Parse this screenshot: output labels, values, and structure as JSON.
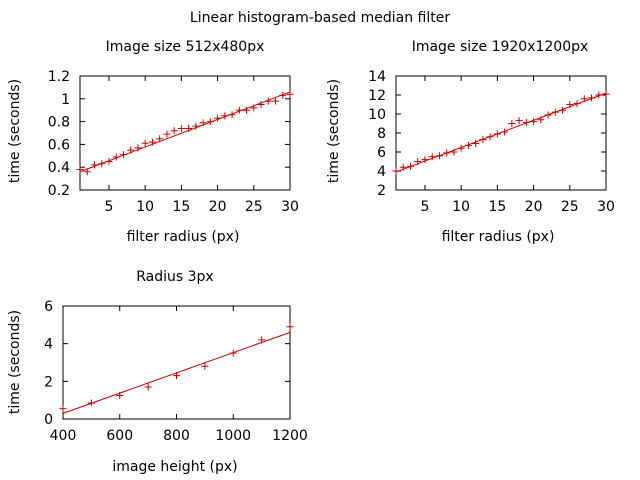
{
  "title": "Linear histogram-based median filter",
  "colors": {
    "series": "#cc0000",
    "axis": "#000000"
  },
  "chart_data": [
    {
      "type": "scatter",
      "title": "Image size 512x480px",
      "xlabel": "filter radius (px)",
      "ylabel": "time (seconds)",
      "xlim": [
        1,
        30
      ],
      "ylim": [
        0.2,
        1.2
      ],
      "xticks": [
        5,
        10,
        15,
        20,
        25,
        30
      ],
      "yticks": [
        0.2,
        0.4,
        0.6,
        0.8,
        1,
        1.2
      ],
      "ytick_labels": [
        "0.2",
        "0.4",
        "0.6",
        "0.8",
        "1",
        "1.2"
      ],
      "grid": false,
      "series": [
        {
          "x": [
            1,
            2,
            3,
            4,
            5,
            6,
            7,
            8,
            9,
            10,
            11,
            12,
            13,
            14,
            15,
            16,
            17,
            18,
            19,
            20,
            21,
            22,
            23,
            24,
            25,
            26,
            27,
            28,
            29,
            30
          ],
          "y": [
            0.38,
            0.36,
            0.42,
            0.43,
            0.45,
            0.49,
            0.51,
            0.55,
            0.57,
            0.61,
            0.62,
            0.65,
            0.69,
            0.72,
            0.74,
            0.74,
            0.76,
            0.79,
            0.8,
            0.83,
            0.85,
            0.86,
            0.9,
            0.9,
            0.92,
            0.95,
            0.98,
            0.98,
            1.03,
            1.04
          ]
        }
      ],
      "fit": {
        "x": [
          1,
          30
        ],
        "y": [
          0.36,
          1.06
        ]
      }
    },
    {
      "type": "scatter",
      "title": "Image size 1920x1200px",
      "xlabel": "filter radius (px)",
      "ylabel": "time (seconds)",
      "xlim": [
        1,
        30
      ],
      "ylim": [
        2,
        14
      ],
      "xticks": [
        5,
        10,
        15,
        20,
        25,
        30
      ],
      "yticks": [
        2,
        4,
        6,
        8,
        10,
        12,
        14
      ],
      "ytick_labels": [
        "2",
        "4",
        "6",
        "8",
        "10",
        "12",
        "14"
      ],
      "grid": false,
      "series": [
        {
          "x": [
            1,
            2,
            3,
            4,
            5,
            6,
            7,
            8,
            9,
            10,
            11,
            12,
            13,
            14,
            15,
            16,
            17,
            18,
            19,
            20,
            21,
            22,
            23,
            24,
            25,
            26,
            27,
            28,
            29,
            30
          ],
          "y": [
            4.0,
            4.4,
            4.5,
            5.0,
            5.2,
            5.5,
            5.6,
            5.9,
            6.0,
            6.4,
            6.7,
            6.9,
            7.3,
            7.6,
            7.9,
            8.1,
            9.0,
            9.3,
            9.1,
            9.2,
            9.4,
            9.9,
            10.2,
            10.4,
            11.0,
            11.1,
            11.6,
            11.7,
            12.0,
            12.1
          ]
        }
      ],
      "fit": {
        "x": [
          1,
          30
        ],
        "y": [
          3.9,
          12.2
        ]
      }
    },
    {
      "type": "scatter",
      "title": "Radius 3px",
      "xlabel": "image height (px)",
      "ylabel": "time (seconds)",
      "xlim": [
        400,
        1200
      ],
      "ylim": [
        0,
        6
      ],
      "xticks": [
        400,
        600,
        800,
        1000,
        1200
      ],
      "yticks": [
        0,
        2,
        4,
        6
      ],
      "ytick_labels": [
        "0",
        "2",
        "4",
        "6"
      ],
      "grid": false,
      "series": [
        {
          "x": [
            400,
            500,
            600,
            700,
            800,
            900,
            1000,
            1100,
            1200
          ],
          "y": [
            0.55,
            0.85,
            1.25,
            1.7,
            2.3,
            2.8,
            3.5,
            4.2,
            4.9
          ]
        }
      ],
      "fit": {
        "x": [
          400,
          1200
        ],
        "y": [
          0.3,
          4.6
        ]
      }
    }
  ]
}
